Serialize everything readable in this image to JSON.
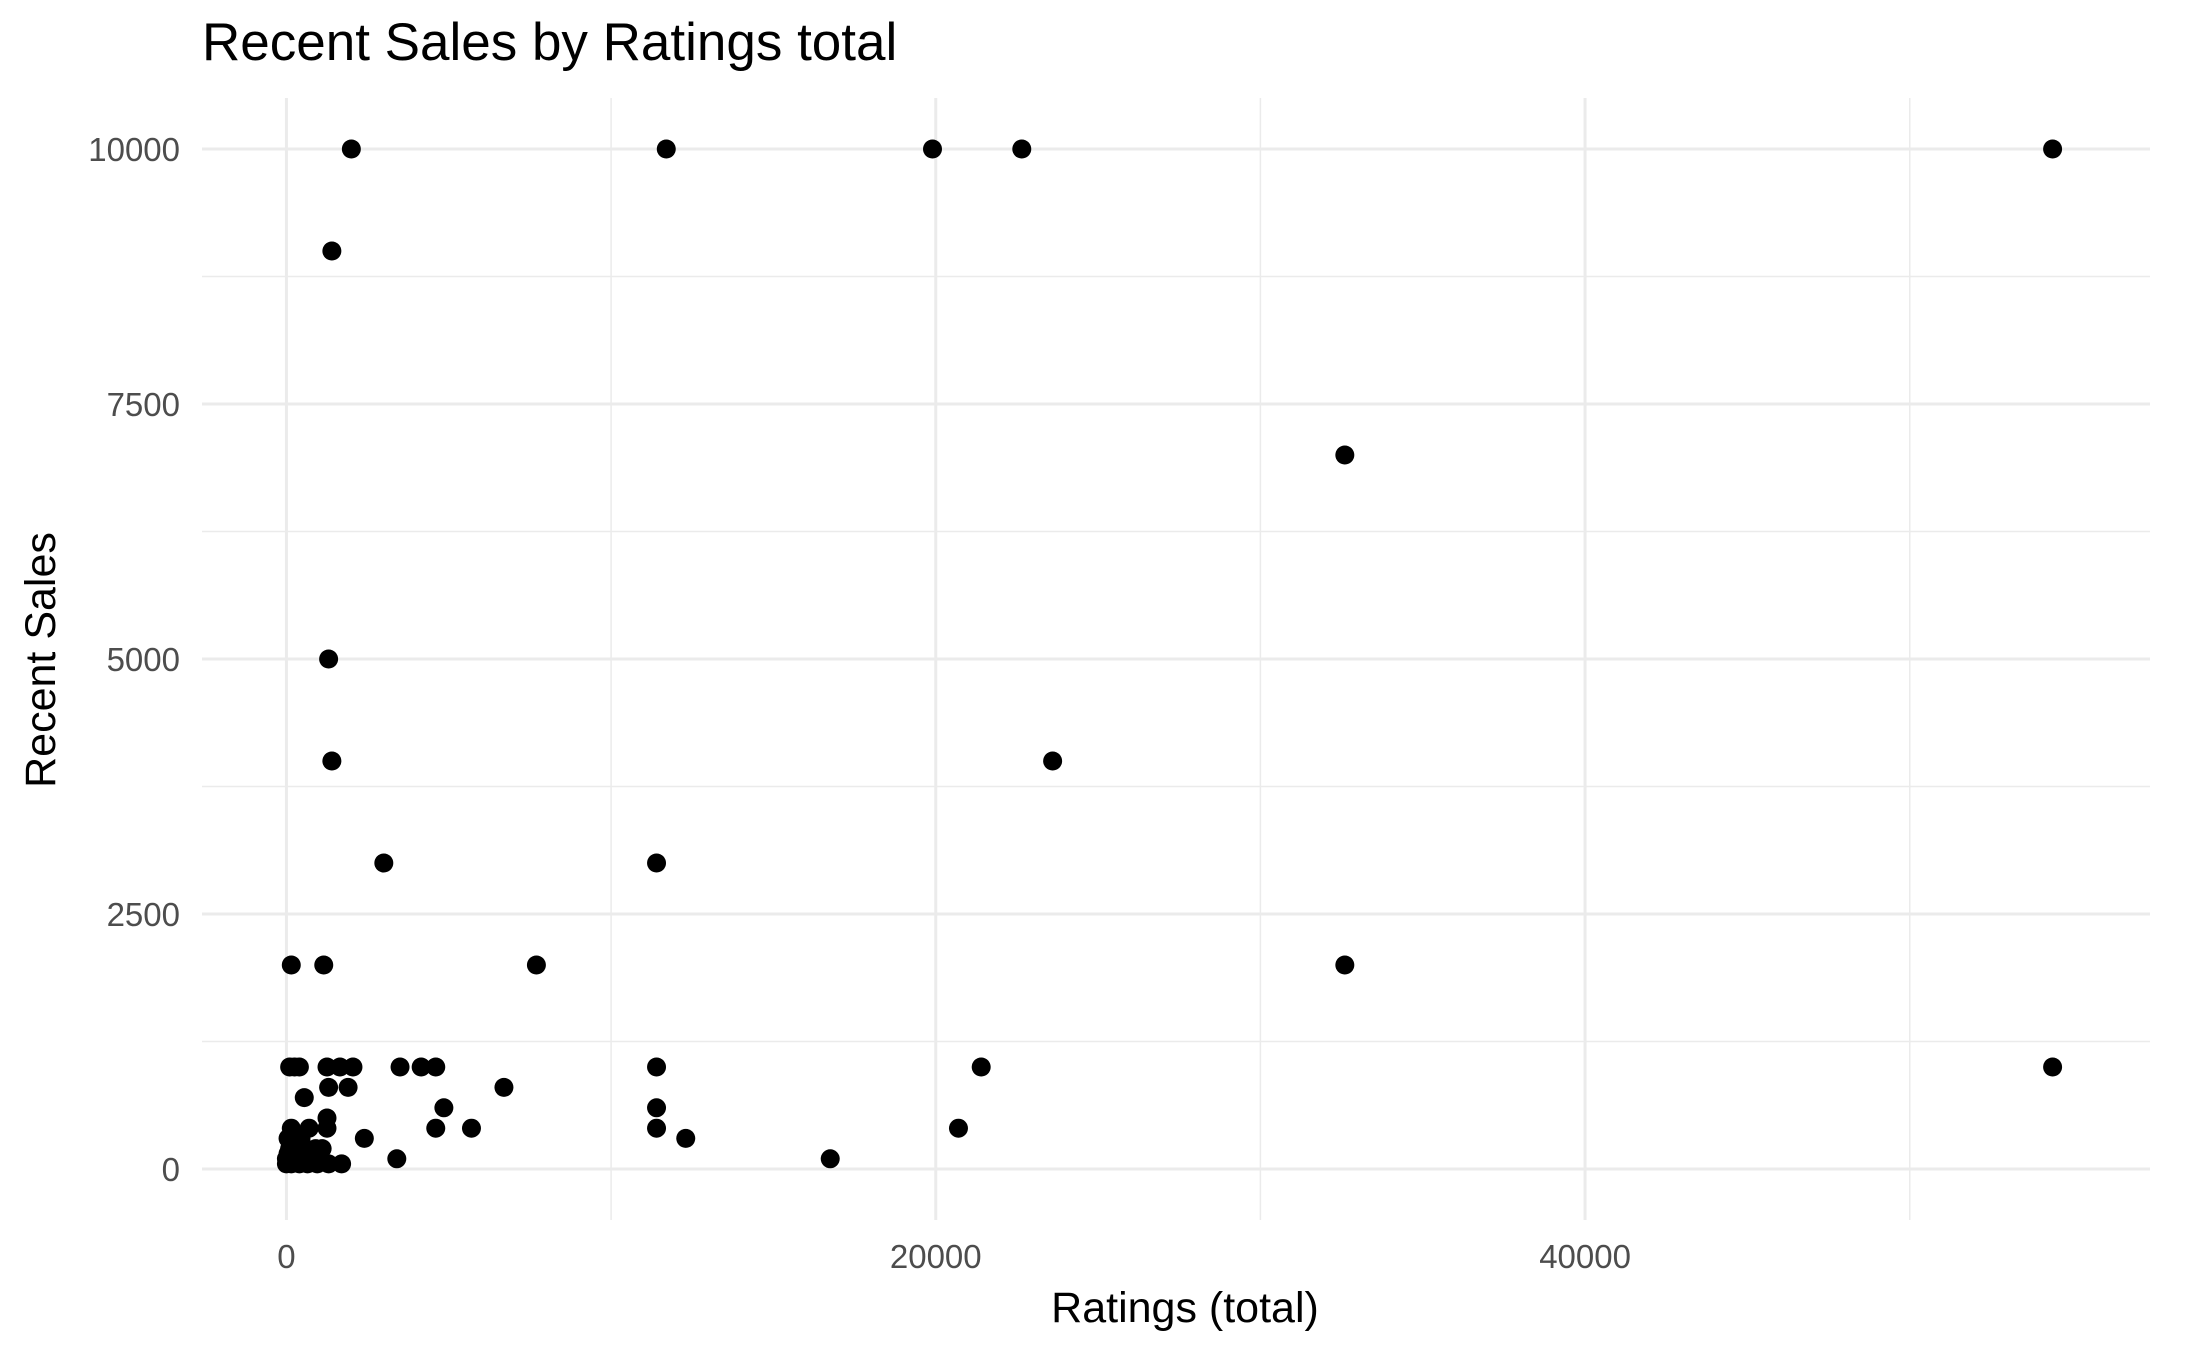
{
  "chart_data": {
    "type": "scatter",
    "title": "Recent Sales by Ratings total",
    "xlabel": "Ratings (total)",
    "ylabel": "Recent Sales",
    "xlim": [
      -2600,
      57400
    ],
    "ylim": [
      -500,
      10500
    ],
    "x_ticks": [
      0,
      20000,
      40000
    ],
    "x_tick_labels": [
      "0",
      "20000",
      "40000"
    ],
    "y_ticks": [
      0,
      2500,
      5000,
      7500,
      10000
    ],
    "y_tick_labels": [
      "0",
      "2500",
      "5000",
      "7500",
      "10000"
    ],
    "grid": true,
    "legend": "none",
    "point_color": "#000000",
    "points": [
      {
        "x": 2000,
        "y": 10000
      },
      {
        "x": 11700,
        "y": 10000
      },
      {
        "x": 19900,
        "y": 10000
      },
      {
        "x": 22650,
        "y": 10000
      },
      {
        "x": 54400,
        "y": 10000
      },
      {
        "x": 1400,
        "y": 9000
      },
      {
        "x": 32600,
        "y": 7000
      },
      {
        "x": 1300,
        "y": 5000
      },
      {
        "x": 1400,
        "y": 4000
      },
      {
        "x": 23600,
        "y": 4000
      },
      {
        "x": 3000,
        "y": 3000
      },
      {
        "x": 11400,
        "y": 3000
      },
      {
        "x": 150,
        "y": 2000
      },
      {
        "x": 1150,
        "y": 2000
      },
      {
        "x": 7700,
        "y": 2000
      },
      {
        "x": 32600,
        "y": 2000
      },
      {
        "x": 100,
        "y": 1000
      },
      {
        "x": 250,
        "y": 1000
      },
      {
        "x": 400,
        "y": 1000
      },
      {
        "x": 1250,
        "y": 1000
      },
      {
        "x": 1650,
        "y": 1000
      },
      {
        "x": 2050,
        "y": 1000
      },
      {
        "x": 3500,
        "y": 1000
      },
      {
        "x": 4150,
        "y": 1000
      },
      {
        "x": 4600,
        "y": 1000
      },
      {
        "x": 11400,
        "y": 1000
      },
      {
        "x": 21400,
        "y": 1000
      },
      {
        "x": 54400,
        "y": 1000
      },
      {
        "x": 1300,
        "y": 800
      },
      {
        "x": 1900,
        "y": 800
      },
      {
        "x": 6700,
        "y": 800
      },
      {
        "x": 550,
        "y": 700
      },
      {
        "x": 4850,
        "y": 600
      },
      {
        "x": 11400,
        "y": 600
      },
      {
        "x": 1250,
        "y": 500
      },
      {
        "x": 150,
        "y": 400
      },
      {
        "x": 700,
        "y": 400
      },
      {
        "x": 1250,
        "y": 400
      },
      {
        "x": 4600,
        "y": 400
      },
      {
        "x": 5700,
        "y": 400
      },
      {
        "x": 11400,
        "y": 400
      },
      {
        "x": 20700,
        "y": 400
      },
      {
        "x": 50,
        "y": 300
      },
      {
        "x": 450,
        "y": 300
      },
      {
        "x": 2400,
        "y": 300
      },
      {
        "x": 12300,
        "y": 300
      },
      {
        "x": 100,
        "y": 200
      },
      {
        "x": 350,
        "y": 200
      },
      {
        "x": 600,
        "y": 200
      },
      {
        "x": 900,
        "y": 200
      },
      {
        "x": 1100,
        "y": 200
      },
      {
        "x": 50,
        "y": 150
      },
      {
        "x": 300,
        "y": 150
      },
      {
        "x": 700,
        "y": 150
      },
      {
        "x": 0,
        "y": 100
      },
      {
        "x": 200,
        "y": 100
      },
      {
        "x": 500,
        "y": 100
      },
      {
        "x": 800,
        "y": 100
      },
      {
        "x": 3400,
        "y": 100
      },
      {
        "x": 16750,
        "y": 100
      },
      {
        "x": 0,
        "y": 50
      },
      {
        "x": 150,
        "y": 50
      },
      {
        "x": 400,
        "y": 50
      },
      {
        "x": 650,
        "y": 50
      },
      {
        "x": 950,
        "y": 50
      },
      {
        "x": 1300,
        "y": 50
      },
      {
        "x": 1700,
        "y": 50
      }
    ]
  }
}
